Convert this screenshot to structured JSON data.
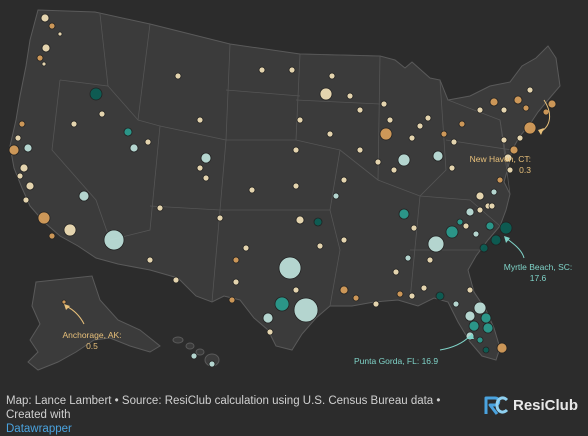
{
  "map": {
    "annotations": [
      {
        "id": "new-haven",
        "name": "New Haven, CT:",
        "value": "0.3",
        "color": "#e8c07a"
      },
      {
        "id": "myrtle-beach",
        "name": "Myrtle Beach, SC:",
        "value": "17.6",
        "color": "#7fd3c8"
      },
      {
        "id": "punta-gorda",
        "name": "Punta Gorda, FL: 16.9",
        "value": "",
        "color": "#7fd3c8"
      },
      {
        "id": "anchorage",
        "name": "Anchorage, AK:",
        "value": "0.5",
        "color": "#e8c07a"
      }
    ],
    "colors": {
      "background": "#2c2c2c",
      "land": "#3b3b3b",
      "state_border": "#5a5a5a",
      "low": "#d9a05b",
      "mid_low": "#f3e2b8",
      "mid_high": "#bfe3dc",
      "high": "#2a9d8f",
      "highest": "#0b5e55"
    }
  },
  "footer": {
    "line1": "Map: Lance Lambert • Source: ResiClub calculation using U.S. Census Bureau data • Created with",
    "line2": "Datawrapper"
  },
  "brand": {
    "name": "ResiClub",
    "icon": "resiclub-logo-icon"
  }
}
